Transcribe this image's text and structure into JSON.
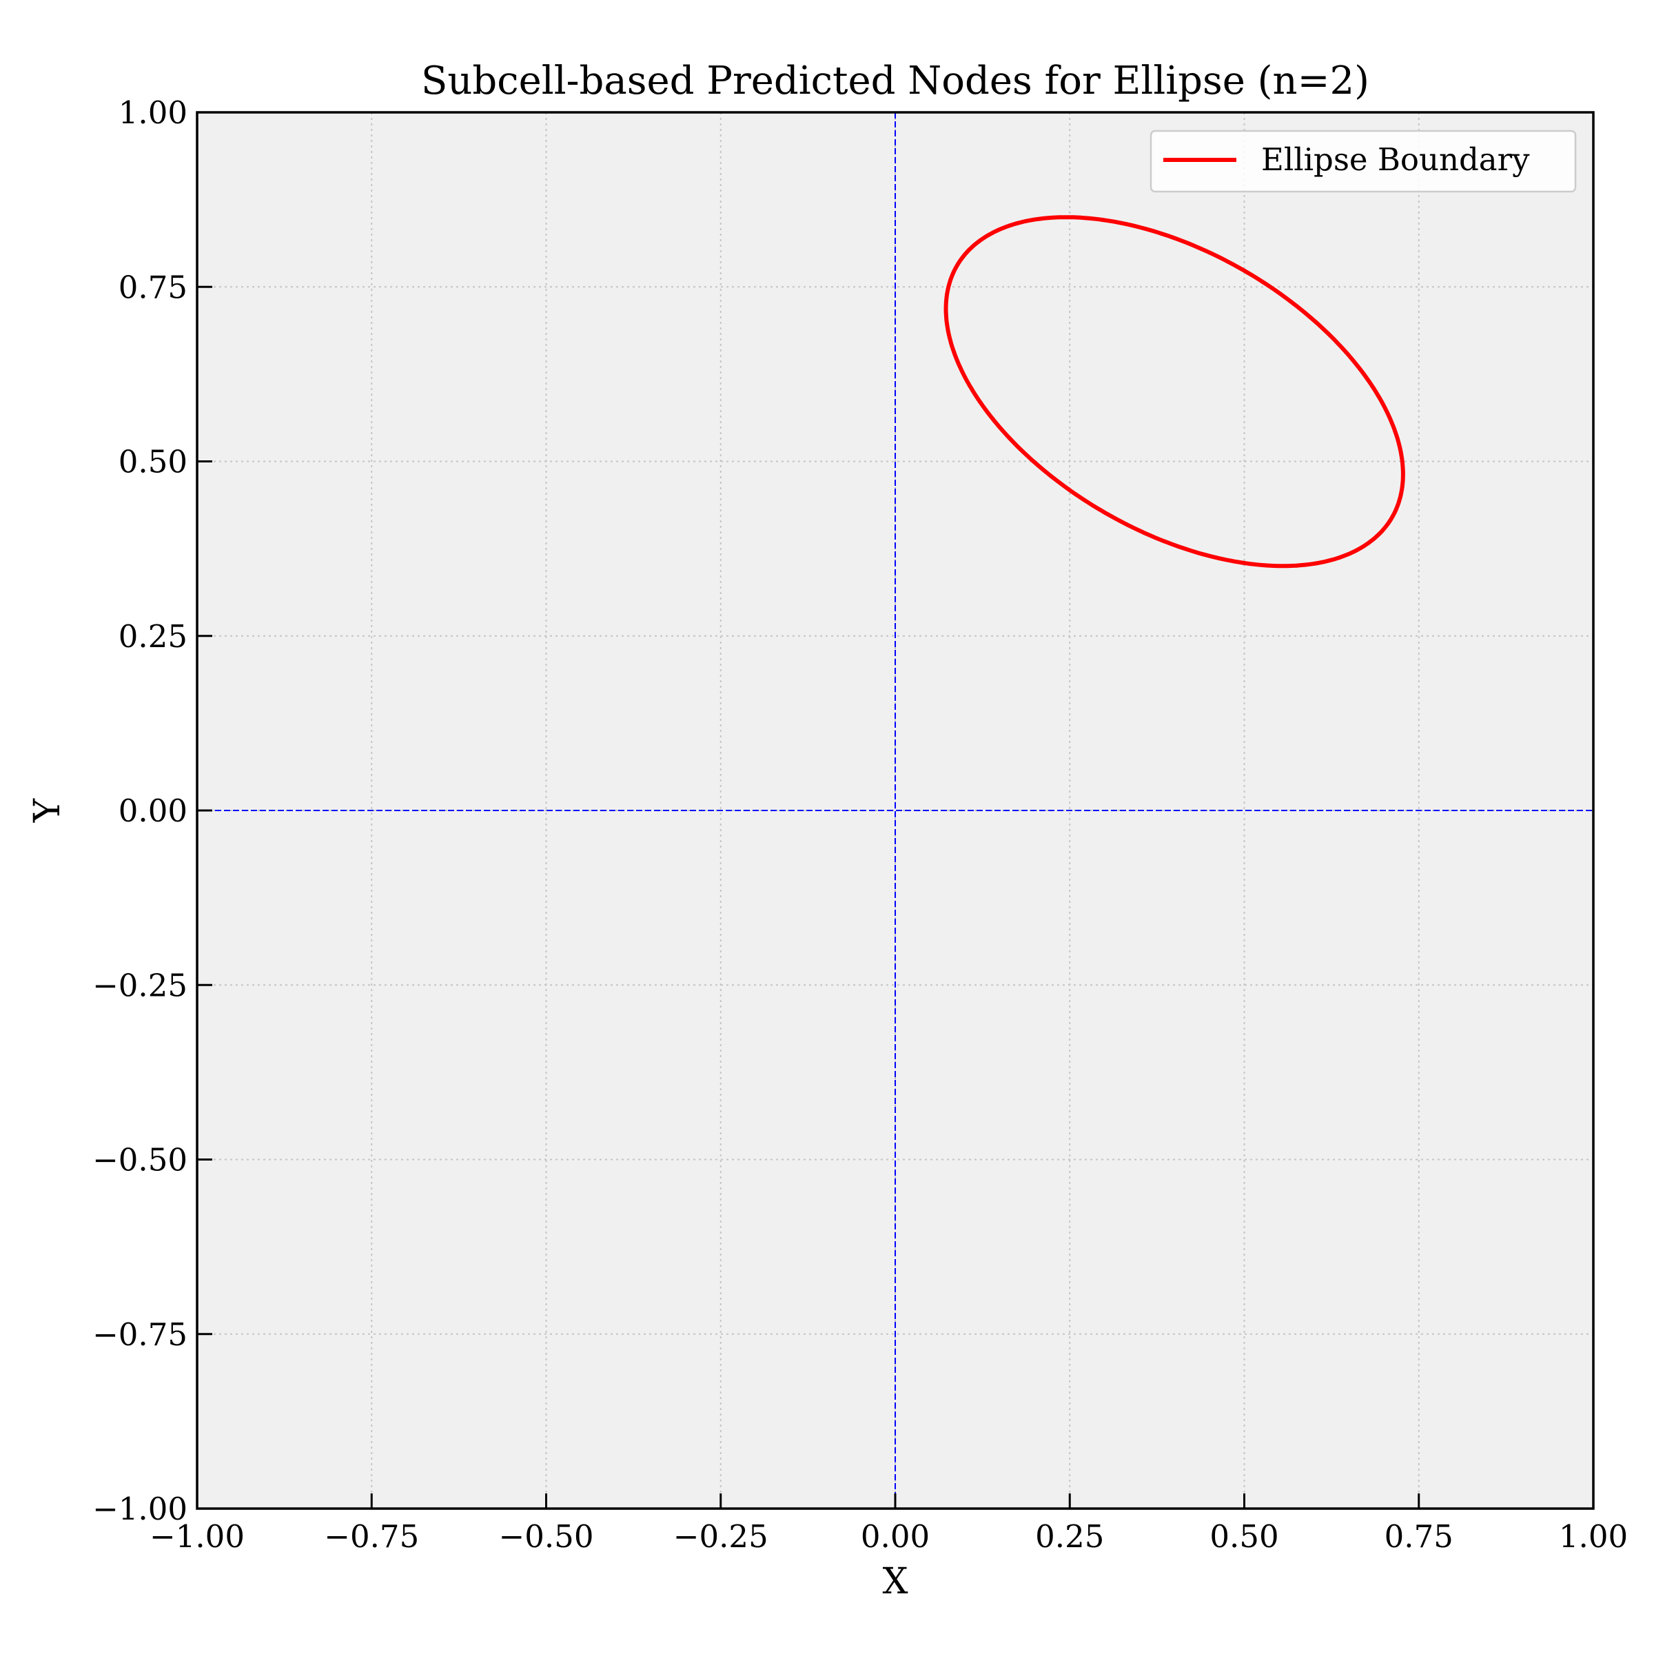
{
  "chart_data": {
    "type": "line",
    "title": "Subcell-based Predicted Nodes for Ellipse (n=2)",
    "xlabel": "X",
    "ylabel": "Y",
    "xlim": [
      -1.0,
      1.0
    ],
    "ylim": [
      -1.0,
      1.0
    ],
    "x_ticks": [
      -1.0,
      -0.75,
      -0.5,
      -0.25,
      0.0,
      0.25,
      0.5,
      0.75,
      1.0
    ],
    "y_ticks": [
      -1.0,
      -0.75,
      -0.5,
      -0.25,
      0.0,
      0.25,
      0.5,
      0.75,
      1.0
    ],
    "x_tick_labels": [
      "−1.00",
      "−0.75",
      "−0.50",
      "−0.25",
      "0.00",
      "0.25",
      "0.50",
      "0.75",
      "1.00"
    ],
    "y_tick_labels": [
      "−1.00",
      "−0.75",
      "−0.50",
      "−0.25",
      "0.00",
      "0.25",
      "0.50",
      "0.75",
      "1.00"
    ],
    "grid": true,
    "legend_position": "upper right",
    "background_color": "#f0f0f0",
    "reference_lines": {
      "vertical_x": 0.0,
      "horizontal_y": 0.0,
      "color": "#0000ff",
      "style": "dashed"
    },
    "series": [
      {
        "name": "Ellipse Boundary",
        "color": "#ff0000",
        "shape": "ellipse",
        "center": [
          0.4,
          0.6
        ],
        "semi_axes": [
          0.36,
          0.2
        ],
        "rotation_deg": -30,
        "extents": {
          "x": [
            0.08,
            0.72
          ],
          "y": [
            0.355,
            0.845
          ]
        }
      }
    ]
  }
}
